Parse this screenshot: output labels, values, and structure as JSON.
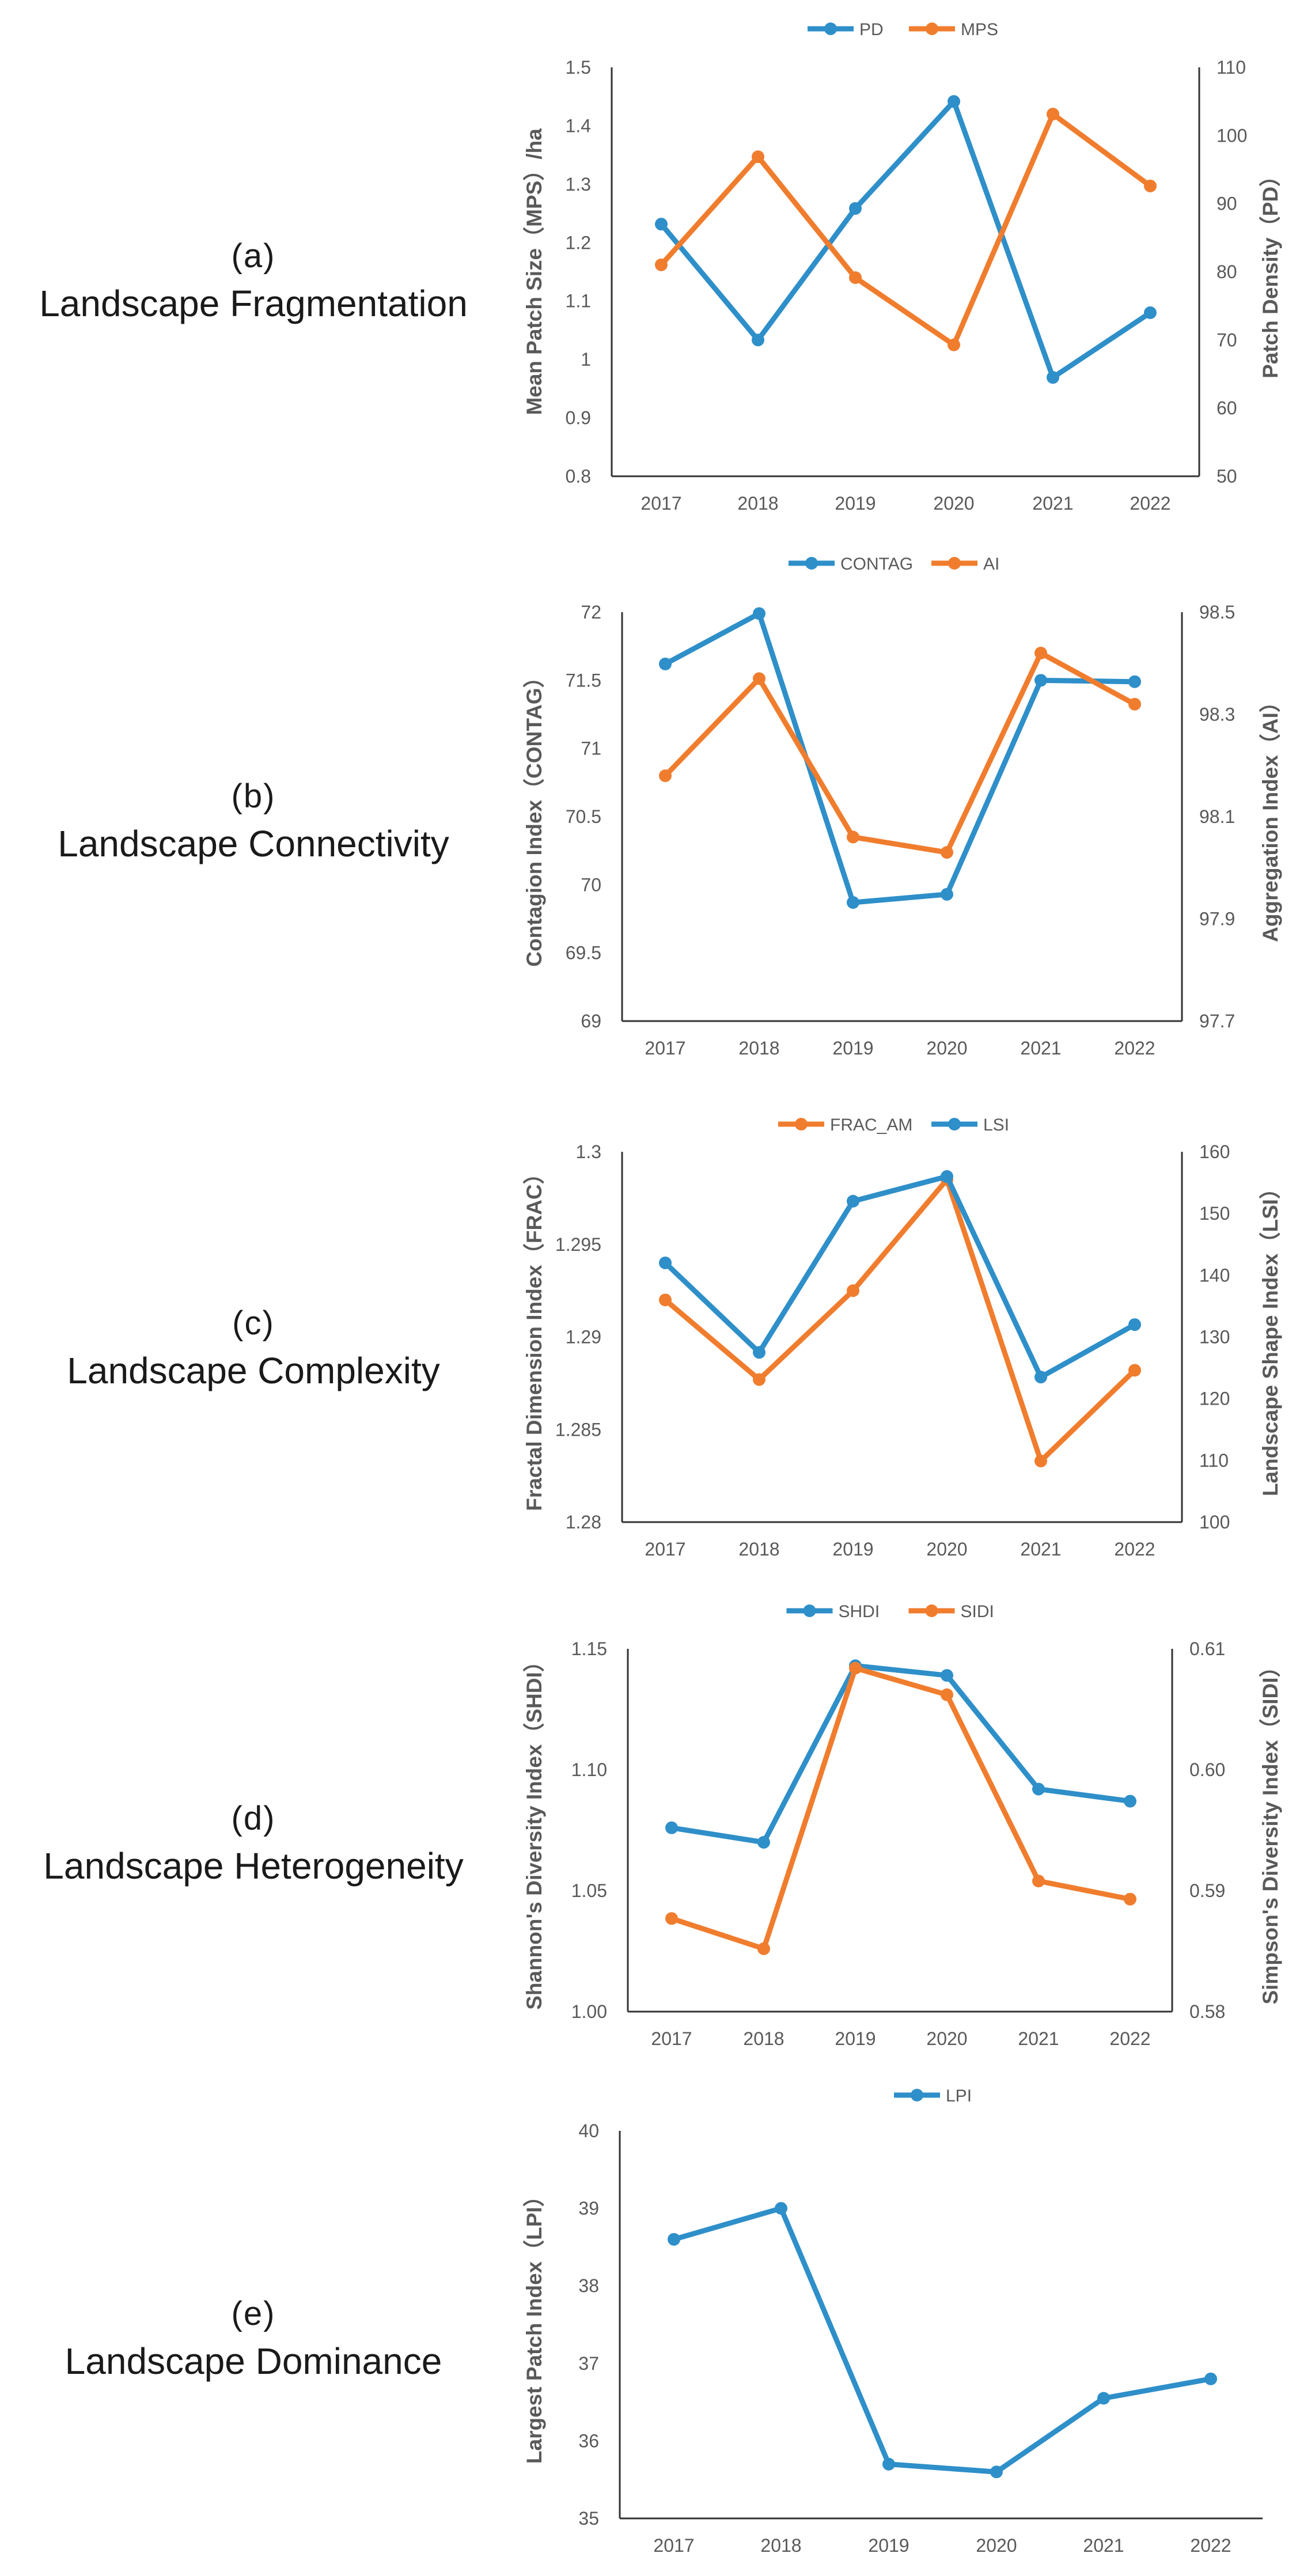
{
  "panels": [
    {
      "tag": "(a)",
      "name": "Landscape Fragmentation"
    },
    {
      "tag": "(b)",
      "name": "Landscape Connectivity"
    },
    {
      "tag": "(c)",
      "name": "Landscape Complexity"
    },
    {
      "tag": "(d)",
      "name": "Landscape Heterogeneity"
    },
    {
      "tag": "(e)",
      "name": "Landscape Dominance"
    }
  ],
  "colors": {
    "blue": "#2e8fc9",
    "orange": "#f07d2e",
    "axis": "#333333",
    "text": "#595959"
  },
  "chart_data": [
    {
      "type": "line",
      "categories": [
        "2017",
        "2018",
        "2019",
        "2020",
        "2021",
        "2022"
      ],
      "series": [
        {
          "name": "PD",
          "axis": "right",
          "color": "#2e8fc9",
          "values": [
            87,
            70,
            89.3,
            105,
            64.5,
            74
          ]
        },
        {
          "name": "MPS",
          "axis": "left",
          "color": "#f07d2e",
          "values": [
            1.162,
            1.347,
            1.14,
            1.025,
            1.42,
            1.297
          ]
        }
      ],
      "legend_order": [
        "PD",
        "MPS"
      ],
      "ylabel_left": "Mean Patch Size（MPS）/ha",
      "ylabel_right": "Patch Density（PD）",
      "left_axis": {
        "min": 0.8,
        "max": 1.5,
        "ticks": [
          "0.8",
          "0.9",
          "1",
          "1.1",
          "1.2",
          "1.3",
          "1.4",
          "1.5"
        ]
      },
      "right_axis": {
        "min": 50,
        "max": 110,
        "ticks": [
          "50",
          "60",
          "70",
          "80",
          "90",
          "100",
          "110"
        ]
      }
    },
    {
      "type": "line",
      "categories": [
        "2017",
        "2018",
        "2019",
        "2020",
        "2021",
        "2022"
      ],
      "series": [
        {
          "name": "CONTAG",
          "axis": "left",
          "color": "#2e8fc9",
          "values": [
            71.62,
            71.99,
            69.87,
            69.93,
            71.5,
            71.49
          ]
        },
        {
          "name": "AI",
          "axis": "right",
          "color": "#f07d2e",
          "values": [
            98.18,
            98.37,
            98.06,
            98.03,
            98.42,
            98.32
          ]
        }
      ],
      "legend_order": [
        "CONTAG",
        "AI"
      ],
      "ylabel_left": "Contagion Index（CONTAG）",
      "ylabel_right": "Aggregation Index（AI）",
      "left_axis": {
        "min": 69,
        "max": 72,
        "ticks": [
          "69",
          "69.5",
          "70",
          "70.5",
          "71",
          "71.5",
          "72"
        ]
      },
      "right_axis": {
        "min": 97.7,
        "max": 98.5,
        "ticks": [
          "97.7",
          "97.9",
          "98.1",
          "98.3",
          "98.5"
        ]
      }
    },
    {
      "type": "line",
      "categories": [
        "2017",
        "2018",
        "2019",
        "2020",
        "2021",
        "2022"
      ],
      "series": [
        {
          "name": "FRAC_AM",
          "axis": "left",
          "color": "#f07d2e",
          "values": [
            1.292,
            1.2877,
            1.2925,
            1.2985,
            1.2833,
            1.2882
          ]
        },
        {
          "name": "LSI",
          "axis": "right",
          "color": "#2e8fc9",
          "values": [
            142,
            127.5,
            152,
            156,
            123.5,
            132
          ]
        }
      ],
      "legend_order": [
        "FRAC_AM",
        "LSI"
      ],
      "ylabel_left": "Fractal Dimension Index（FRAC）",
      "ylabel_right": "Landscape Shape Index（LSI）",
      "left_axis": {
        "min": 1.28,
        "max": 1.3,
        "ticks": [
          "1.28",
          "1.285",
          "1.29",
          "1.295",
          "1.3"
        ]
      },
      "right_axis": {
        "min": 100,
        "max": 160,
        "ticks": [
          "100",
          "110",
          "120",
          "130",
          "140",
          "150",
          "160"
        ]
      }
    },
    {
      "type": "line",
      "categories": [
        "2017",
        "2018",
        "2019",
        "2020",
        "2021",
        "2022"
      ],
      "series": [
        {
          "name": "SHDI",
          "axis": "left",
          "color": "#2e8fc9",
          "values": [
            1.076,
            1.07,
            1.143,
            1.139,
            1.092,
            1.087
          ]
        },
        {
          "name": "SIDI",
          "axis": "right",
          "color": "#f07d2e",
          "values": [
            0.5877,
            0.5852,
            0.6084,
            0.6062,
            0.5908,
            0.5893
          ]
        }
      ],
      "legend_order": [
        "SHDI",
        "SIDI"
      ],
      "ylabel_left": "Shannon's Diversity Index（SHDI）",
      "ylabel_right": "Simpson's Diversity Index（SIDI）",
      "left_axis": {
        "min": 1.0,
        "max": 1.15,
        "ticks": [
          "1.00",
          "1.05",
          "1.10",
          "1.15"
        ]
      },
      "right_axis": {
        "min": 0.58,
        "max": 0.61,
        "ticks": [
          "0.58",
          "0.59",
          "0.60",
          "0.61"
        ]
      }
    },
    {
      "type": "line",
      "categories": [
        "2017",
        "2018",
        "2019",
        "2020",
        "2021",
        "2022"
      ],
      "series": [
        {
          "name": "LPI",
          "axis": "left",
          "color": "#2e8fc9",
          "values": [
            38.6,
            39.0,
            35.7,
            35.6,
            36.55,
            36.8
          ]
        }
      ],
      "legend_order": [
        "LPI"
      ],
      "ylabel_left": "Largest Patch Index（LPI）",
      "ylabel_right": "",
      "left_axis": {
        "min": 35,
        "max": 40,
        "ticks": [
          "35",
          "36",
          "37",
          "38",
          "39",
          "40"
        ]
      },
      "right_axis": null
    }
  ]
}
